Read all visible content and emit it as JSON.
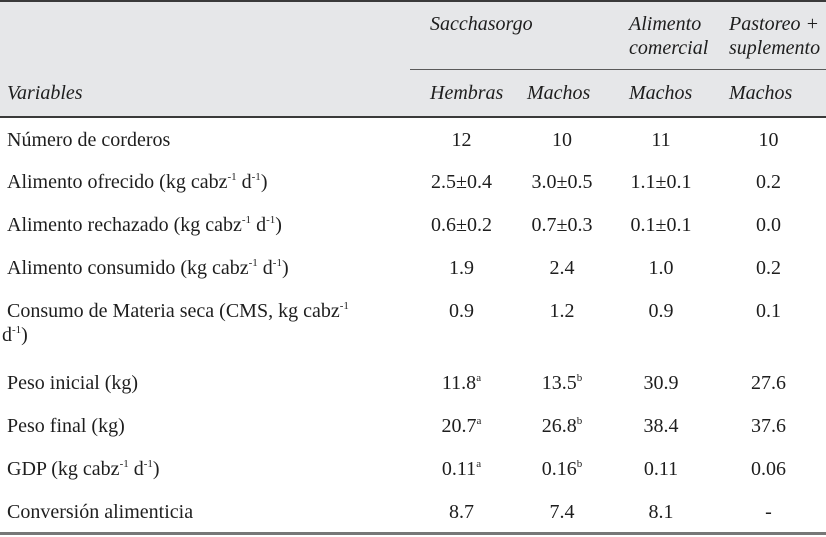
{
  "table": {
    "header": {
      "variables_label": "Variables",
      "groups": [
        {
          "label": "Sacchasorgo",
          "lines": [
            "Sacchasorgo"
          ],
          "colspan": 2
        },
        {
          "label": "Alimento comercial",
          "lines": [
            "Alimento",
            "comercial"
          ],
          "colspan": 1
        },
        {
          "label": "Pastoreo + suplemento",
          "lines": [
            "Pastoreo +",
            "suplemento"
          ],
          "colspan": 1
        }
      ],
      "subheaders": [
        "Hembras",
        "Machos",
        "Machos",
        "Machos"
      ]
    },
    "rows": [
      {
        "label": "Número de corderos",
        "label_parts": [
          "Número de corderos"
        ],
        "values": [
          "12",
          "10",
          "11",
          "10"
        ],
        "superscripts": [
          "",
          "",
          "",
          ""
        ]
      },
      {
        "label": "Alimento ofrecido (kg cabz-1 d-1)",
        "label_parts": [
          "Alimento ofrecido (kg cabz",
          "-1",
          " d",
          "-1",
          ")"
        ],
        "values": [
          "2.5±0.4",
          "3.0±0.5",
          "1.1±0.1",
          "0.2"
        ],
        "superscripts": [
          "",
          "",
          "",
          ""
        ]
      },
      {
        "label": "Alimento rechazado (kg cabz-1 d-1)",
        "label_parts": [
          "Alimento rechazado (kg cabz",
          "-1",
          " d",
          "-1",
          ")"
        ],
        "values": [
          "0.6±0.2",
          "0.7±0.3",
          "0.1±0.1",
          "0.0"
        ],
        "superscripts": [
          "",
          "",
          "",
          ""
        ]
      },
      {
        "label": "Alimento consumido (kg cabz-1 d-1)",
        "label_parts": [
          "Alimento consumido (kg cabz",
          "-1",
          " d",
          "-1",
          ")"
        ],
        "values": [
          "1.9",
          "2.4",
          "1.0",
          "0.2"
        ],
        "superscripts": [
          "",
          "",
          "",
          ""
        ]
      },
      {
        "label": "Consumo de Materia seca (CMS, kg cabz-1 d-1)",
        "label_parts": [
          "Consumo de Materia seca (CMS, kg cabz",
          "-1",
          " d",
          "-1",
          ")"
        ],
        "values": [
          "0.9",
          "1.2",
          "0.9",
          "0.1"
        ],
        "superscripts": [
          "",
          "",
          "",
          ""
        ]
      },
      {
        "label": "Peso inicial (kg)",
        "label_parts": [
          "Peso inicial (kg)"
        ],
        "values": [
          "11.8",
          "13.5",
          "30.9",
          "27.6"
        ],
        "superscripts": [
          "a",
          "b",
          "",
          ""
        ]
      },
      {
        "label": "Peso final (kg)",
        "label_parts": [
          "Peso final (kg)"
        ],
        "values": [
          "20.7",
          "26.8",
          "38.4",
          "37.6"
        ],
        "superscripts": [
          "a",
          "b",
          "",
          ""
        ]
      },
      {
        "label": "GDP (kg cabz-1 d-1)",
        "label_parts": [
          "GDP (kg cabz",
          "-1",
          " d",
          "-1",
          ")"
        ],
        "values": [
          "0.11",
          "0.16",
          "0.11",
          "0.06"
        ],
        "superscripts": [
          "a",
          "b",
          "",
          ""
        ]
      },
      {
        "label": "Conversión alimenticia",
        "label_parts": [
          "Conversión alimenticia"
        ],
        "values": [
          "8.7",
          "7.4",
          "8.1",
          "-"
        ],
        "superscripts": [
          "",
          "",
          "",
          ""
        ]
      }
    ],
    "colors": {
      "header_background": "#e6e7e9",
      "text": "#1e1e1e",
      "rule": "#3a3a3a",
      "bottom_rule": "#777777"
    }
  }
}
